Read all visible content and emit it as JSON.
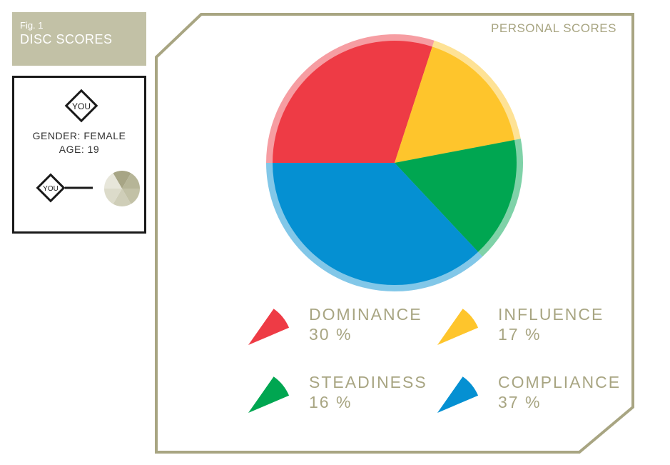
{
  "figure": {
    "number": "Fig. 1",
    "title": "DISC SCORES"
  },
  "profile": {
    "badge": "YOU",
    "gender": "GENDER: FEMALE",
    "age": "AGE: 19",
    "small_badge": "YOU"
  },
  "panel_label": "PERSONAL SCORES",
  "colors": {
    "frame": "#a8a582",
    "panel_bg": "#c2c1a6"
  },
  "chart_data": {
    "type": "pie",
    "title": "PERSONAL SCORES",
    "slices": [
      {
        "name": "DOMINANCE",
        "value": 30,
        "label": "30 %",
        "color": "#ee3b45"
      },
      {
        "name": "INFLUENCE",
        "value": 17,
        "label": "17 %",
        "color": "#fec52c"
      },
      {
        "name": "STEADINESS",
        "value": 16,
        "label": "16 %",
        "color": "#00a651"
      },
      {
        "name": "COMPLIANCE",
        "value": 37,
        "label": "37 %",
        "color": "#0590d2"
      }
    ]
  }
}
